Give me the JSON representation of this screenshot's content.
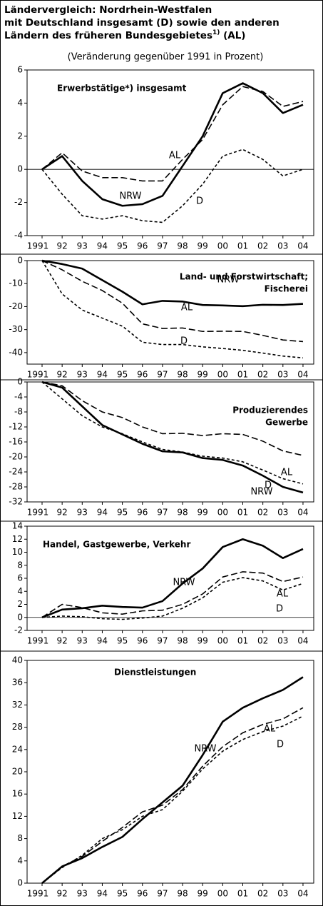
{
  "title_lines": [
    "Ländervergleich: Nordrhein-Westfalen",
    "mit Deutschland insgesamt (D) sowie den anderen",
    "Ländern des früheren Bundesgebietes"
  ],
  "title_footnote": "1)",
  "title_suffix": " (AL)",
  "subtitle": "(Veränderung gegenüber 1991 in Prozent)",
  "chart_data": [
    {
      "type": "line",
      "title": [
        "Erwerbstätige*) insgesamt"
      ],
      "categories": [
        "1991",
        "92",
        "93",
        "94",
        "95",
        "96",
        "97",
        "98",
        "99",
        "00",
        "01",
        "02",
        "03",
        "04"
      ],
      "ylim": [
        -4,
        6
      ],
      "yticks": [
        -4,
        -2,
        0,
        2,
        4,
        6
      ],
      "series": [
        {
          "name": "NRW",
          "color": "#000000",
          "dash": "solid",
          "values": [
            0,
            0.8,
            -0.7,
            -1.8,
            -2.2,
            -2.1,
            -1.6,
            0.2,
            2.0,
            4.6,
            5.2,
            4.6,
            3.4,
            3.9
          ]
        },
        {
          "name": "AL",
          "color": "#000000",
          "dash": "long",
          "values": [
            0,
            1.0,
            -0.1,
            -0.5,
            -0.5,
            -0.7,
            -0.7,
            0.6,
            1.8,
            3.9,
            5.0,
            4.7,
            3.8,
            4.1
          ]
        },
        {
          "name": "D",
          "color": "#000000",
          "dash": "short",
          "values": [
            0,
            -1.5,
            -2.8,
            -3.0,
            -2.8,
            -3.1,
            -3.2,
            -2.2,
            -0.9,
            0.8,
            1.2,
            0.6,
            -0.4,
            0.0
          ]
        }
      ]
    },
    {
      "type": "line",
      "title": [
        "Land- und Forstwirtschaft;",
        "Fischerei"
      ],
      "categories": [
        "1991",
        "92",
        "93",
        "94",
        "95",
        "96",
        "97",
        "98",
        "99",
        "00",
        "01",
        "02",
        "03",
        "04"
      ],
      "ylim": [
        -45,
        0
      ],
      "yticks": [
        -40,
        -30,
        -20,
        -10,
        0
      ],
      "series": [
        {
          "name": "NRW",
          "color": "#000000",
          "dash": "solid",
          "values": [
            0,
            -1.5,
            -3.5,
            -8.5,
            -13.5,
            -19,
            -17.5,
            -17.8,
            -19.3,
            -19.5,
            -19.8,
            -19.2,
            -19.3,
            -18.8
          ]
        },
        {
          "name": "AL",
          "color": "#000000",
          "dash": "long",
          "values": [
            0,
            -4,
            -9,
            -13,
            -18.5,
            -27.5,
            -29.5,
            -29.3,
            -30.8,
            -30.7,
            -30.8,
            -32.5,
            -34.5,
            -35.2
          ]
        },
        {
          "name": "D",
          "color": "#000000",
          "dash": "short",
          "values": [
            0,
            -14.5,
            -21.5,
            -25,
            -28.5,
            -35.5,
            -36.5,
            -36.5,
            -37.5,
            -38.2,
            -39,
            -40.2,
            -41.5,
            -42.3
          ]
        }
      ]
    },
    {
      "type": "line",
      "title": [
        "Produzierendes",
        "Gewerbe"
      ],
      "categories": [
        "1991",
        "92",
        "93",
        "94",
        "95",
        "96",
        "97",
        "98",
        "99",
        "00",
        "01",
        "02",
        "03",
        "04"
      ],
      "ylim": [
        -32,
        0
      ],
      "yticks": [
        -32,
        -28,
        -24,
        -20,
        -16,
        -12,
        -8,
        -4,
        0
      ],
      "series": [
        {
          "name": "NRW",
          "color": "#000000",
          "dash": "solid",
          "values": [
            0,
            -1.5,
            -6.5,
            -11.5,
            -14,
            -16.5,
            -18.5,
            -18.8,
            -20.3,
            -20.8,
            -22.3,
            -25,
            -28,
            -29.5
          ]
        },
        {
          "name": "AL",
          "color": "#000000",
          "dash": "long",
          "values": [
            0,
            -1,
            -5,
            -8,
            -9.5,
            -12,
            -13.8,
            -13.7,
            -14.3,
            -13.8,
            -14,
            -15.8,
            -18.4,
            -19.6
          ]
        },
        {
          "name": "D",
          "color": "#000000",
          "dash": "short",
          "values": [
            0,
            -4.5,
            -9,
            -12,
            -13.8,
            -16,
            -18,
            -18.7,
            -19.8,
            -20.3,
            -21.3,
            -23.5,
            -25.8,
            -27.2
          ]
        }
      ]
    },
    {
      "type": "line",
      "title": [
        "Handel, Gastgewerbe, Verkehr"
      ],
      "categories": [
        "1991",
        "92",
        "93",
        "94",
        "95",
        "96",
        "97",
        "98",
        "99",
        "00",
        "01",
        "02",
        "03",
        "04"
      ],
      "ylim": [
        -2,
        14
      ],
      "yticks": [
        -2,
        0,
        2,
        4,
        6,
        8,
        10,
        12,
        14
      ],
      "series": [
        {
          "name": "NRW",
          "color": "#000000",
          "dash": "solid",
          "values": [
            0,
            1.2,
            1.4,
            1.8,
            1.6,
            1.5,
            2.5,
            5.2,
            7.5,
            10.8,
            12.0,
            11.0,
            9.1,
            10.5
          ]
        },
        {
          "name": "AL",
          "color": "#000000",
          "dash": "long",
          "values": [
            0,
            2.0,
            1.5,
            0.7,
            0.5,
            1.0,
            1.1,
            2.0,
            3.6,
            6.2,
            7.0,
            6.8,
            5.5,
            6.2
          ]
        },
        {
          "name": "D",
          "color": "#000000",
          "dash": "short",
          "values": [
            0,
            0.2,
            0.1,
            -0.2,
            -0.3,
            -0.1,
            0.2,
            1.4,
            3.0,
            5.4,
            6.1,
            5.6,
            4.2,
            5.2
          ]
        }
      ]
    },
    {
      "type": "line",
      "title": [
        "Dienstleistungen"
      ],
      "categories": [
        "1991",
        "92",
        "93",
        "94",
        "95",
        "96",
        "97",
        "98",
        "99",
        "00",
        "01",
        "02",
        "03",
        "04"
      ],
      "ylim": [
        0,
        40
      ],
      "yticks": [
        0,
        4,
        8,
        12,
        16,
        20,
        24,
        28,
        32,
        36,
        40
      ],
      "series": [
        {
          "name": "NRW",
          "color": "#000000",
          "dash": "solid",
          "values": [
            0,
            3.0,
            4.5,
            6.5,
            8.3,
            11.5,
            14.5,
            17.5,
            23.0,
            29.0,
            31.5,
            33.2,
            34.7,
            37.0
          ]
        },
        {
          "name": "AL",
          "color": "#000000",
          "dash": "long",
          "values": [
            0,
            3.0,
            4.8,
            7.5,
            10.0,
            12.8,
            14.0,
            16.8,
            21.0,
            24.5,
            27.0,
            28.5,
            29.5,
            31.5
          ]
        },
        {
          "name": "D",
          "color": "#000000",
          "dash": "short",
          "values": [
            0,
            2.8,
            5.0,
            8.0,
            9.6,
            12.0,
            13.2,
            16.5,
            20.5,
            23.7,
            25.8,
            27.2,
            28.2,
            30.0
          ]
        }
      ]
    }
  ]
}
